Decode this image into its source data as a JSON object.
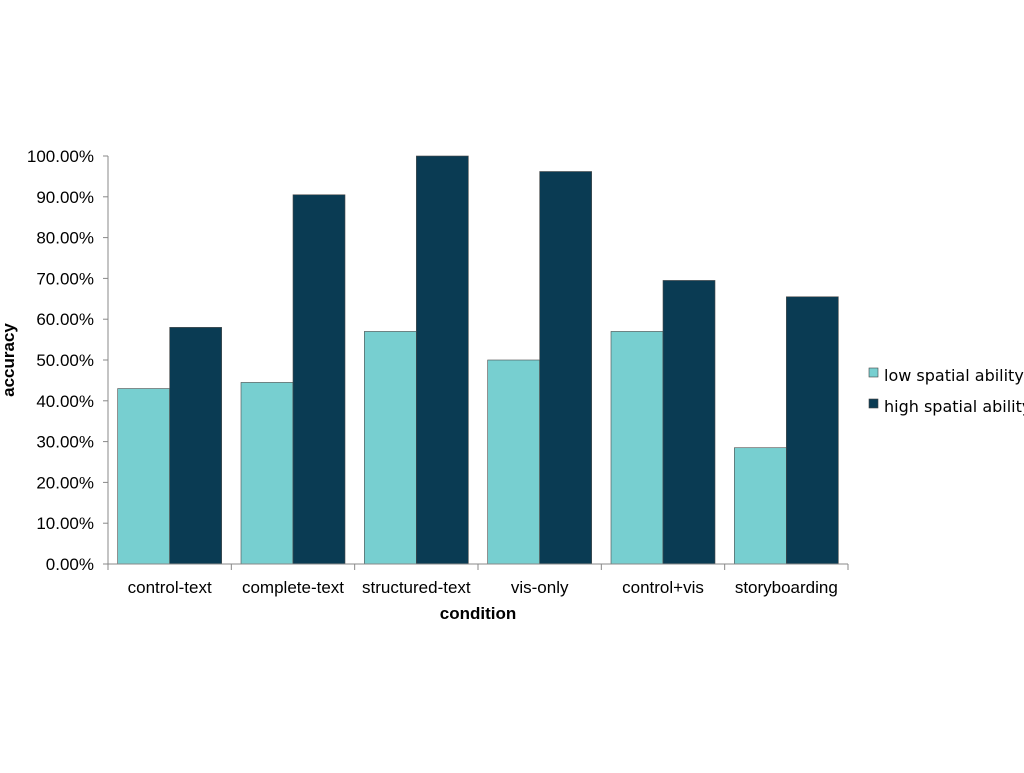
{
  "chart_data": {
    "type": "bar",
    "xlabel": "condition",
    "ylabel": "accuracy",
    "ylim": [
      0,
      1
    ],
    "y_ticks": [
      "0.00%",
      "10.00%",
      "20.00%",
      "30.00%",
      "40.00%",
      "50.00%",
      "60.00%",
      "70.00%",
      "80.00%",
      "90.00%",
      "100.00%"
    ],
    "categories": [
      "control-text",
      "complete-text",
      "structured-text",
      "vis-only",
      "control+vis",
      "storyboarding"
    ],
    "series": [
      {
        "name": "low spatial ability",
        "color": "#77cfd0",
        "values": [
          0.43,
          0.445,
          0.57,
          0.5,
          0.57,
          0.285
        ]
      },
      {
        "name": "high spatial ability",
        "color": "#0a3b53",
        "values": [
          0.58,
          0.905,
          1.0,
          0.962,
          0.695,
          0.655
        ]
      }
    ],
    "grid": false,
    "legend_position": "right"
  }
}
